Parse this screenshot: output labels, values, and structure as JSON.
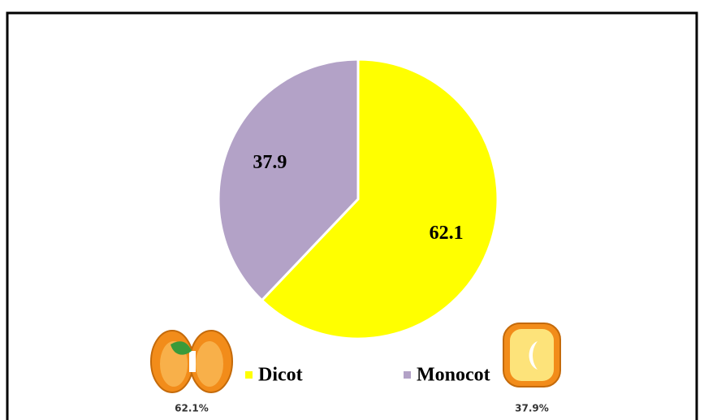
{
  "chart_data": {
    "type": "pie",
    "categories": [
      "Dicot",
      "Monocot"
    ],
    "values": [
      62.1,
      37.9
    ],
    "colors": [
      "#ffff00",
      "#b3a2c7"
    ],
    "image_labels": [
      "62.1%",
      "37.9%"
    ]
  }
}
